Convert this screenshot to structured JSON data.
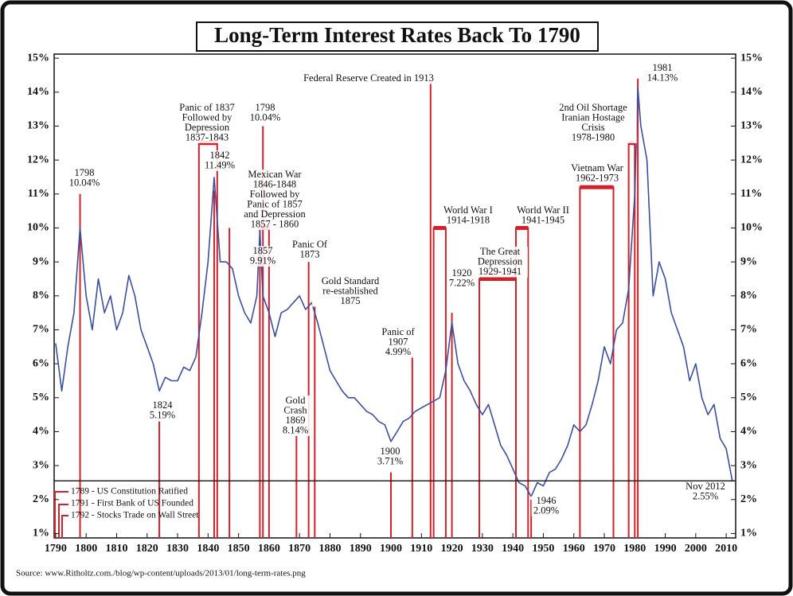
{
  "chart_data": {
    "type": "line",
    "title": "Long-Term Interest Rates Back To 1790",
    "source": "Source: www.Ritholtz.com./blog/wp-content/uploads/2013/01/long-term-rates.png",
    "xlim": [
      1789.5,
      2013.1
    ],
    "xticks": [
      1790,
      1800,
      1810,
      1820,
      1830,
      1840,
      1850,
      1860,
      1870,
      1880,
      1890,
      1900,
      1910,
      1920,
      1930,
      1940,
      1950,
      1960,
      1970,
      1980,
      1990,
      2000,
      2010
    ],
    "ylim": [
      0.87,
      15.12
    ],
    "yticks": [
      {
        "value": 1,
        "label": "1%"
      },
      {
        "value": 2,
        "label": "2%"
      },
      {
        "value": 3,
        "label": "3%"
      },
      {
        "value": 4,
        "label": "4%"
      },
      {
        "value": 5,
        "label": "5%"
      },
      {
        "value": 6,
        "label": "6%"
      },
      {
        "value": 7,
        "label": "7%"
      },
      {
        "value": 8,
        "label": "8%"
      },
      {
        "value": 9,
        "label": "9%"
      },
      {
        "value": 10,
        "label": "10%"
      },
      {
        "value": 11,
        "label": "11%"
      },
      {
        "value": 12,
        "label": "12%"
      },
      {
        "value": 13,
        "label": "13%"
      },
      {
        "value": 14,
        "label": "14%"
      },
      {
        "value": 15,
        "label": "15%"
      }
    ],
    "color": "#3a4fa0",
    "marker_color": "#d4202a",
    "x": [
      1790,
      1792,
      1794,
      1796,
      1798,
      1800,
      1802,
      1804,
      1806,
      1808,
      1810,
      1812,
      1814,
      1816,
      1818,
      1820,
      1822,
      1824,
      1826,
      1828,
      1830,
      1832,
      1834,
      1836,
      1838,
      1840,
      1842,
      1844,
      1846,
      1848,
      1850,
      1852,
      1854,
      1856,
      1857,
      1858,
      1860,
      1862,
      1864,
      1866,
      1868,
      1870,
      1872,
      1874,
      1876,
      1878,
      1880,
      1882,
      1884,
      1886,
      1888,
      1890,
      1892,
      1894,
      1896,
      1898,
      1900,
      1902,
      1904,
      1906,
      1908,
      1910,
      1912,
      1914,
      1916,
      1918,
      1920,
      1922,
      1924,
      1926,
      1928,
      1930,
      1932,
      1934,
      1936,
      1938,
      1940,
      1942,
      1944,
      1946,
      1948,
      1950,
      1952,
      1954,
      1956,
      1958,
      1960,
      1962,
      1964,
      1966,
      1968,
      1970,
      1972,
      1974,
      1976,
      1978,
      1980,
      1981,
      1982,
      1984,
      1986,
      1988,
      1990,
      1992,
      1994,
      1996,
      1998,
      2000,
      2002,
      2004,
      2006,
      2008,
      2010,
      2012
    ],
    "values": [
      6.6,
      5.2,
      6.5,
      7.5,
      10.0,
      8.0,
      7.0,
      8.5,
      7.5,
      8.0,
      7.0,
      7.5,
      8.6,
      8.0,
      7.0,
      6.5,
      6.0,
      5.2,
      5.6,
      5.5,
      5.5,
      5.9,
      5.8,
      6.2,
      7.5,
      9.0,
      11.49,
      9.0,
      9.0,
      8.8,
      8.0,
      7.5,
      7.2,
      8.0,
      9.91,
      8.0,
      7.5,
      6.8,
      7.5,
      7.6,
      7.8,
      8.0,
      7.6,
      7.8,
      7.2,
      6.5,
      5.8,
      5.5,
      5.2,
      5.0,
      5.0,
      4.8,
      4.6,
      4.5,
      4.3,
      4.2,
      3.71,
      4.0,
      4.3,
      4.4,
      4.6,
      4.7,
      4.8,
      4.9,
      5.0,
      5.8,
      7.22,
      6.0,
      5.5,
      5.2,
      4.8,
      4.5,
      4.8,
      4.2,
      3.6,
      3.3,
      2.9,
      2.5,
      2.4,
      2.09,
      2.5,
      2.4,
      2.8,
      2.9,
      3.2,
      3.6,
      4.2,
      4.0,
      4.2,
      4.8,
      5.5,
      6.5,
      6.0,
      7.0,
      7.2,
      8.2,
      11.0,
      14.13,
      13.0,
      12.0,
      8.0,
      9.0,
      8.5,
      7.5,
      7.0,
      6.5,
      5.5,
      6.0,
      5.0,
      4.5,
      4.8,
      3.8,
      3.5,
      2.55
    ],
    "markers": [
      {
        "x": 1798,
        "top": 11.0
      },
      {
        "x": 1824,
        "top": 4.3
      },
      {
        "x": 1842,
        "top": 11.1
      },
      {
        "x": 1847,
        "top": 10.0
      },
      {
        "x": 1858,
        "top": 13.0
      },
      {
        "x": 1869,
        "top": 3.9
      },
      {
        "x": 1873,
        "top": 9.0
      },
      {
        "x": 1875,
        "top": 7.7
      },
      {
        "x": 1900,
        "top": 2.8
      },
      {
        "x": 1907,
        "top": 6.2
      },
      {
        "x": 1913,
        "top": 14.3
      },
      {
        "x": 1920,
        "top": 7.5
      },
      {
        "x": 1946,
        "top": 2.0
      },
      {
        "x": 1981,
        "top": 14.4
      }
    ],
    "brackets": [
      {
        "x": [
          1837,
          1843
        ],
        "y": 12.5
      },
      {
        "x": [
          1857,
          1860
        ],
        "y": 10.0
      },
      {
        "x": [
          1914,
          1918
        ],
        "y": 10.0
      },
      {
        "x": [
          1929,
          1941
        ],
        "y": 8.5
      },
      {
        "x": [
          1941,
          1945
        ],
        "y": 10.0
      },
      {
        "x": [
          1962,
          1973
        ],
        "y": 11.2
      },
      {
        "x": [
          1978,
          1980
        ],
        "y": 12.5
      }
    ],
    "annotations": [
      [
        "Federal Reserve Created in 1913"
      ],
      [
        "1798",
        "10.04%"
      ],
      [
        "Panic of 1837",
        "Followed by",
        "Depression",
        "1837-1843"
      ],
      [
        "1842",
        "11.49%"
      ],
      [
        "1798",
        "10.04%"
      ],
      [
        "Mexican War",
        "1846-1848",
        "Followed by",
        "Panic of 1857",
        "and Depression",
        "1857 - 1860"
      ],
      [
        "1857",
        "9.91%"
      ],
      [
        "Panic Of",
        "1873"
      ],
      [
        "Gold Standard",
        "re-established",
        "1875"
      ],
      [
        "1824",
        "5.19%"
      ],
      [
        "Gold",
        "Crash",
        "1869",
        "8.14%"
      ],
      [
        "Panic of",
        "1907",
        "4.99%"
      ],
      [
        "1900",
        "3.71%"
      ],
      [
        "World War I",
        "1914-1918"
      ],
      [
        "1920",
        "7.22%"
      ],
      [
        "The Great",
        "Depression",
        "1929-1941"
      ],
      [
        "World War II",
        "1941-1945"
      ],
      [
        "Vietnam War",
        "1962-1973"
      ],
      [
        "2nd Oil Shortage",
        "Iranian Hostage",
        "Crisis",
        "1978-1980"
      ],
      [
        "1981",
        "14.13%"
      ],
      [
        "1946",
        "2.09%"
      ],
      [
        "Nov 2012",
        "2.55%"
      ]
    ],
    "notes": [
      "1789 - US Constitution Ratified",
      "1791 - First Bank of US Founded",
      "1792 - Stocks Trade on Wall Street"
    ]
  }
}
